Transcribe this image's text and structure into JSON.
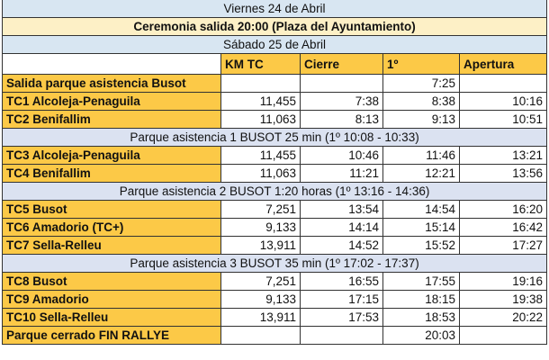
{
  "title_day1": "Viernes 24 de Abril",
  "ceremony": "Ceremonia salida 20:00 (Plaza del Ayuntamiento)",
  "title_day2": "Sábado 25 de Abril",
  "columns": [
    "",
    "KM TC",
    "Cierre",
    "1º",
    "Apertura"
  ],
  "rows": [
    {
      "type": "stage",
      "cells": [
        "Salida parque  asistencia Busot",
        "",
        "",
        "7:25",
        ""
      ]
    },
    {
      "type": "stage",
      "cells": [
        "TC1 Alcoleja-Penaguila",
        "11,455",
        "7:38",
        "8:38",
        "10:16"
      ]
    },
    {
      "type": "stage",
      "cells": [
        "TC2 Benifallim",
        "11,063",
        "8:13",
        "9:13",
        "10:51"
      ]
    },
    {
      "type": "park",
      "text": "Parque asistencia 1 BUSOT 25 min (1º 10:08 - 10:33)"
    },
    {
      "type": "stage",
      "cells": [
        "TC3 Alcoleja-Penaguila",
        "11,455",
        "10:46",
        "11:46",
        "13:21"
      ]
    },
    {
      "type": "stage",
      "cells": [
        "TC4 Benifallim",
        "11,063",
        "11:21",
        "12:21",
        "13:56"
      ]
    },
    {
      "type": "park",
      "text": "Parque asistencia 2 BUSOT 1:20 horas (1º 13:16 - 14:36)"
    },
    {
      "type": "stage",
      "cells": [
        "TC5 Busot",
        "7,251",
        "13:54",
        "14:54",
        "16:20"
      ]
    },
    {
      "type": "stage",
      "cells": [
        "TC6 Amadorio (TC+)",
        "9,133",
        "14:14",
        "15:14",
        "16:42"
      ]
    },
    {
      "type": "stage",
      "cells": [
        "TC7 Sella-Relleu",
        "13,911",
        "14:52",
        "15:52",
        "17:27"
      ]
    },
    {
      "type": "park",
      "text": "Parque asistencia 3 BUSOT 35 min (1º 17:02 - 17:37)"
    },
    {
      "type": "stage",
      "cells": [
        "TC8 Busot",
        "7,251",
        "16:55",
        "17:55",
        "19:16"
      ]
    },
    {
      "type": "stage",
      "cells": [
        "TC9 Amadorio",
        "9,133",
        "17:15",
        "18:15",
        "19:38"
      ]
    },
    {
      "type": "stage",
      "cells": [
        "TC10 Sella-Relleu",
        "13,911",
        "17:53",
        "18:53",
        "20:22"
      ]
    },
    {
      "type": "stage",
      "cells": [
        "Parque cerrado FIN RALLYE",
        "",
        "",
        "20:03",
        ""
      ]
    }
  ],
  "colors": {
    "day": "#d8e6f2",
    "ceremony": "#fdf0c6",
    "label": "#fcc947",
    "park": "#dbe2f1"
  }
}
